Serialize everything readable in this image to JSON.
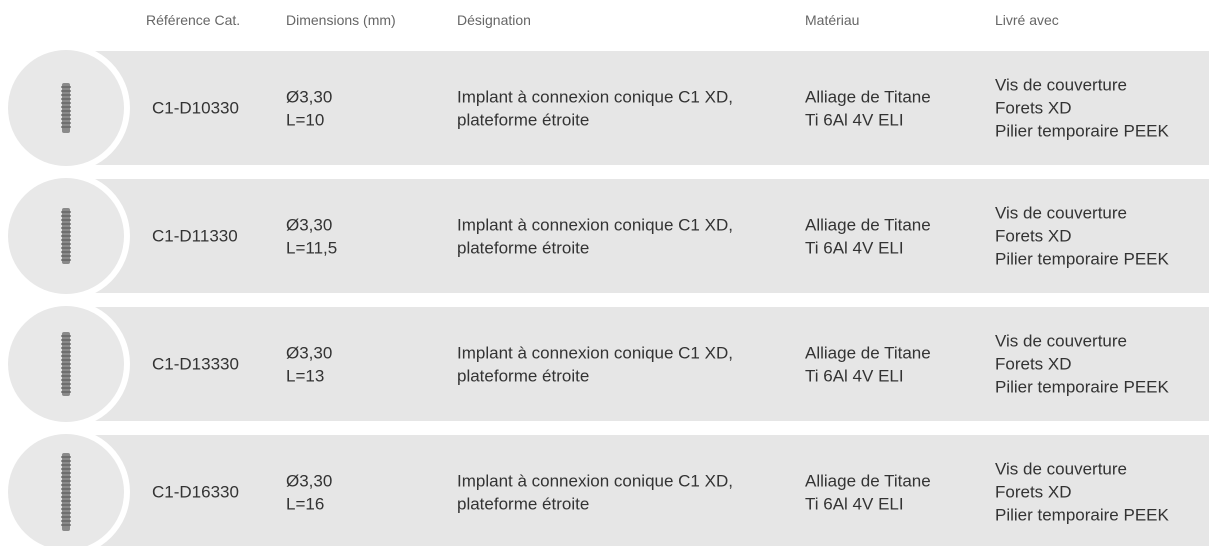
{
  "table": {
    "header": [
      "Référence Cat.",
      "Dimensions (mm)",
      "Désignation",
      "Matériau",
      "Livré avec"
    ],
    "rows": [
      {
        "reference": "C1-D10330",
        "dimensions": [
          "Ø3,30",
          "L=10"
        ],
        "designation": [
          "Implant à connexion conique C1 XD,",
          "plateforme étroite"
        ],
        "material": [
          "Alliage de Titane",
          "Ti 6Al 4V ELI"
        ],
        "delivered": [
          "Vis de couverture",
          "Forets XD",
          "Pilier temporaire PEEK"
        ]
      },
      {
        "reference": "C1-D11330",
        "dimensions": [
          "Ø3,30",
          "L=11,5"
        ],
        "designation": [
          "Implant à connexion conique C1 XD,",
          "plateforme étroite"
        ],
        "material": [
          "Alliage de Titane",
          "Ti 6Al 4V ELI"
        ],
        "delivered": [
          "Vis de couverture",
          "Forets XD",
          "Pilier temporaire PEEK"
        ]
      },
      {
        "reference": "C1-D13330",
        "dimensions": [
          "Ø3,30",
          "L=13"
        ],
        "designation": [
          "Implant à connexion conique C1 XD,",
          "plateforme étroite"
        ],
        "material": [
          "Alliage de Titane",
          "Ti 6Al 4V ELI"
        ],
        "delivered": [
          "Vis de couverture",
          "Forets XD",
          "Pilier temporaire PEEK"
        ]
      },
      {
        "reference": "C1-D16330",
        "dimensions": [
          "Ø3,30",
          "L=16"
        ],
        "designation": [
          "Implant à connexion conique C1 XD,",
          "plateforme étroite"
        ],
        "material": [
          "Alliage de Titane",
          "Ti 6Al 4V ELI"
        ],
        "delivered": [
          "Vis de couverture",
          "Forets XD",
          "Pilier temporaire PEEK"
        ]
      }
    ]
  }
}
